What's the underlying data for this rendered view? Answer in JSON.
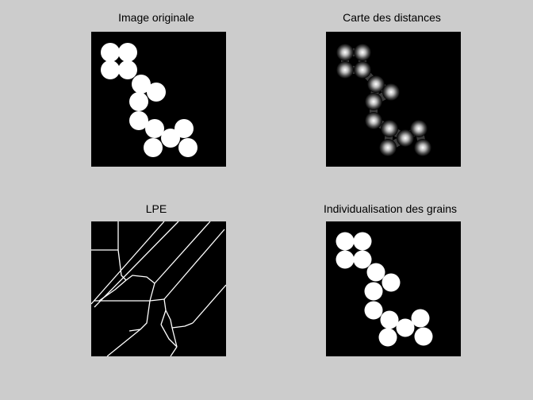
{
  "figure": {
    "background_color": "#cccccc",
    "panels": [
      {
        "id": "original",
        "title": "Image originale",
        "content": "binary grains image"
      },
      {
        "id": "distance",
        "title": "Carte des distances",
        "content": "distance transform map"
      },
      {
        "id": "watershed",
        "title": "LPE",
        "content": "watershed lines"
      },
      {
        "id": "separated",
        "title": "Individualisation des grains",
        "content": "separated grains"
      }
    ]
  }
}
